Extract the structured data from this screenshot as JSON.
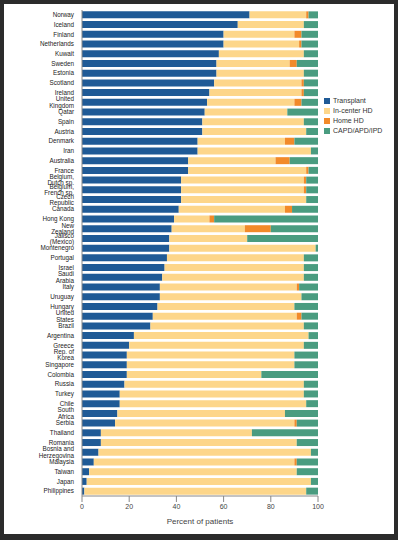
{
  "chart_data": {
    "type": "bar",
    "orientation": "horizontal",
    "stacked": true,
    "grid": false,
    "legend": "upper right",
    "xlabel": "Percent of patients",
    "xlim": [
      0,
      100
    ],
    "xticks": [
      0,
      20,
      40,
      60,
      80,
      100
    ],
    "categories": [
      "Norway",
      "Iceland",
      "Finland",
      "Netherlands",
      "Kuwait",
      "Sweden",
      "Estonia",
      "Scotland",
      "Ireland",
      "United Kingdom",
      "Qatar",
      "Spain",
      "Austria",
      "Denmark",
      "Iran",
      "Australia",
      "France",
      "Belgium, Dutch sp.",
      "Belgium, French sp.",
      "Czech Republic",
      "Canada",
      "Hong Kong",
      "New Zealand",
      "Jalisco (Mexico)",
      "Montenegro",
      "Portugal",
      "Israel",
      "Saudi Arabia",
      "Italy",
      "Uruguay",
      "Hungary",
      "United States",
      "Brazil",
      "Argentina",
      "Greece",
      "Rep. of Korea",
      "Singapore",
      "Colombia",
      "Russia",
      "Turkey",
      "Chile",
      "South Africa",
      "Serbia",
      "Thailand",
      "Romania",
      "Bosnia and Herzegovina",
      "Malaysia",
      "Taiwan",
      "Japan",
      "Philippines"
    ],
    "series": [
      {
        "name": "Transplant",
        "color": "#1f5a96",
        "values": [
          71,
          66,
          60,
          60,
          58,
          57,
          57,
          56,
          54,
          53,
          52,
          51,
          51,
          49,
          49,
          45,
          45,
          42,
          42,
          42,
          41,
          39,
          38,
          37,
          37,
          36,
          35,
          34,
          33,
          33,
          32,
          30,
          29,
          22,
          20,
          19,
          19,
          19,
          18,
          16,
          16,
          15,
          14,
          8,
          8,
          7,
          5,
          3,
          2,
          1
        ]
      },
      {
        "name": "In-center HD",
        "color": "#fdd68a",
        "values": [
          24,
          28,
          30,
          32,
          36,
          31,
          37,
          37,
          39,
          37,
          35,
          43,
          44,
          37,
          48,
          37,
          50,
          52,
          52,
          53,
          45,
          15,
          31,
          33,
          62,
          58,
          59,
          60,
          58,
          60,
          58,
          61,
          65,
          74,
          74,
          71,
          71,
          57,
          76,
          78,
          79,
          71,
          76,
          64,
          83,
          90,
          85,
          88,
          95,
          94
        ]
      },
      {
        "name": "Home HD",
        "color": "#f28a2a",
        "values": [
          1,
          0,
          3,
          1,
          0,
          3,
          0,
          1,
          1,
          3,
          0,
          0,
          0,
          4,
          0,
          6,
          1,
          1,
          1,
          0,
          3,
          2,
          11,
          0,
          0,
          0,
          0,
          0,
          1,
          0,
          0,
          2,
          0,
          0,
          0,
          0,
          0,
          0,
          0,
          0,
          0,
          0,
          1,
          0,
          0,
          0,
          1,
          0,
          0,
          0
        ]
      },
      {
        "name": "CAPD/APD/IPD",
        "color": "#4a9c80",
        "values": [
          4,
          6,
          7,
          7,
          6,
          9,
          6,
          6,
          6,
          7,
          13,
          6,
          5,
          10,
          3,
          12,
          4,
          5,
          5,
          5,
          11,
          44,
          20,
          30,
          1,
          6,
          6,
          6,
          8,
          7,
          10,
          7,
          6,
          4,
          6,
          10,
          10,
          24,
          6,
          6,
          5,
          14,
          9,
          28,
          9,
          3,
          9,
          9,
          3,
          5
        ]
      }
    ]
  }
}
